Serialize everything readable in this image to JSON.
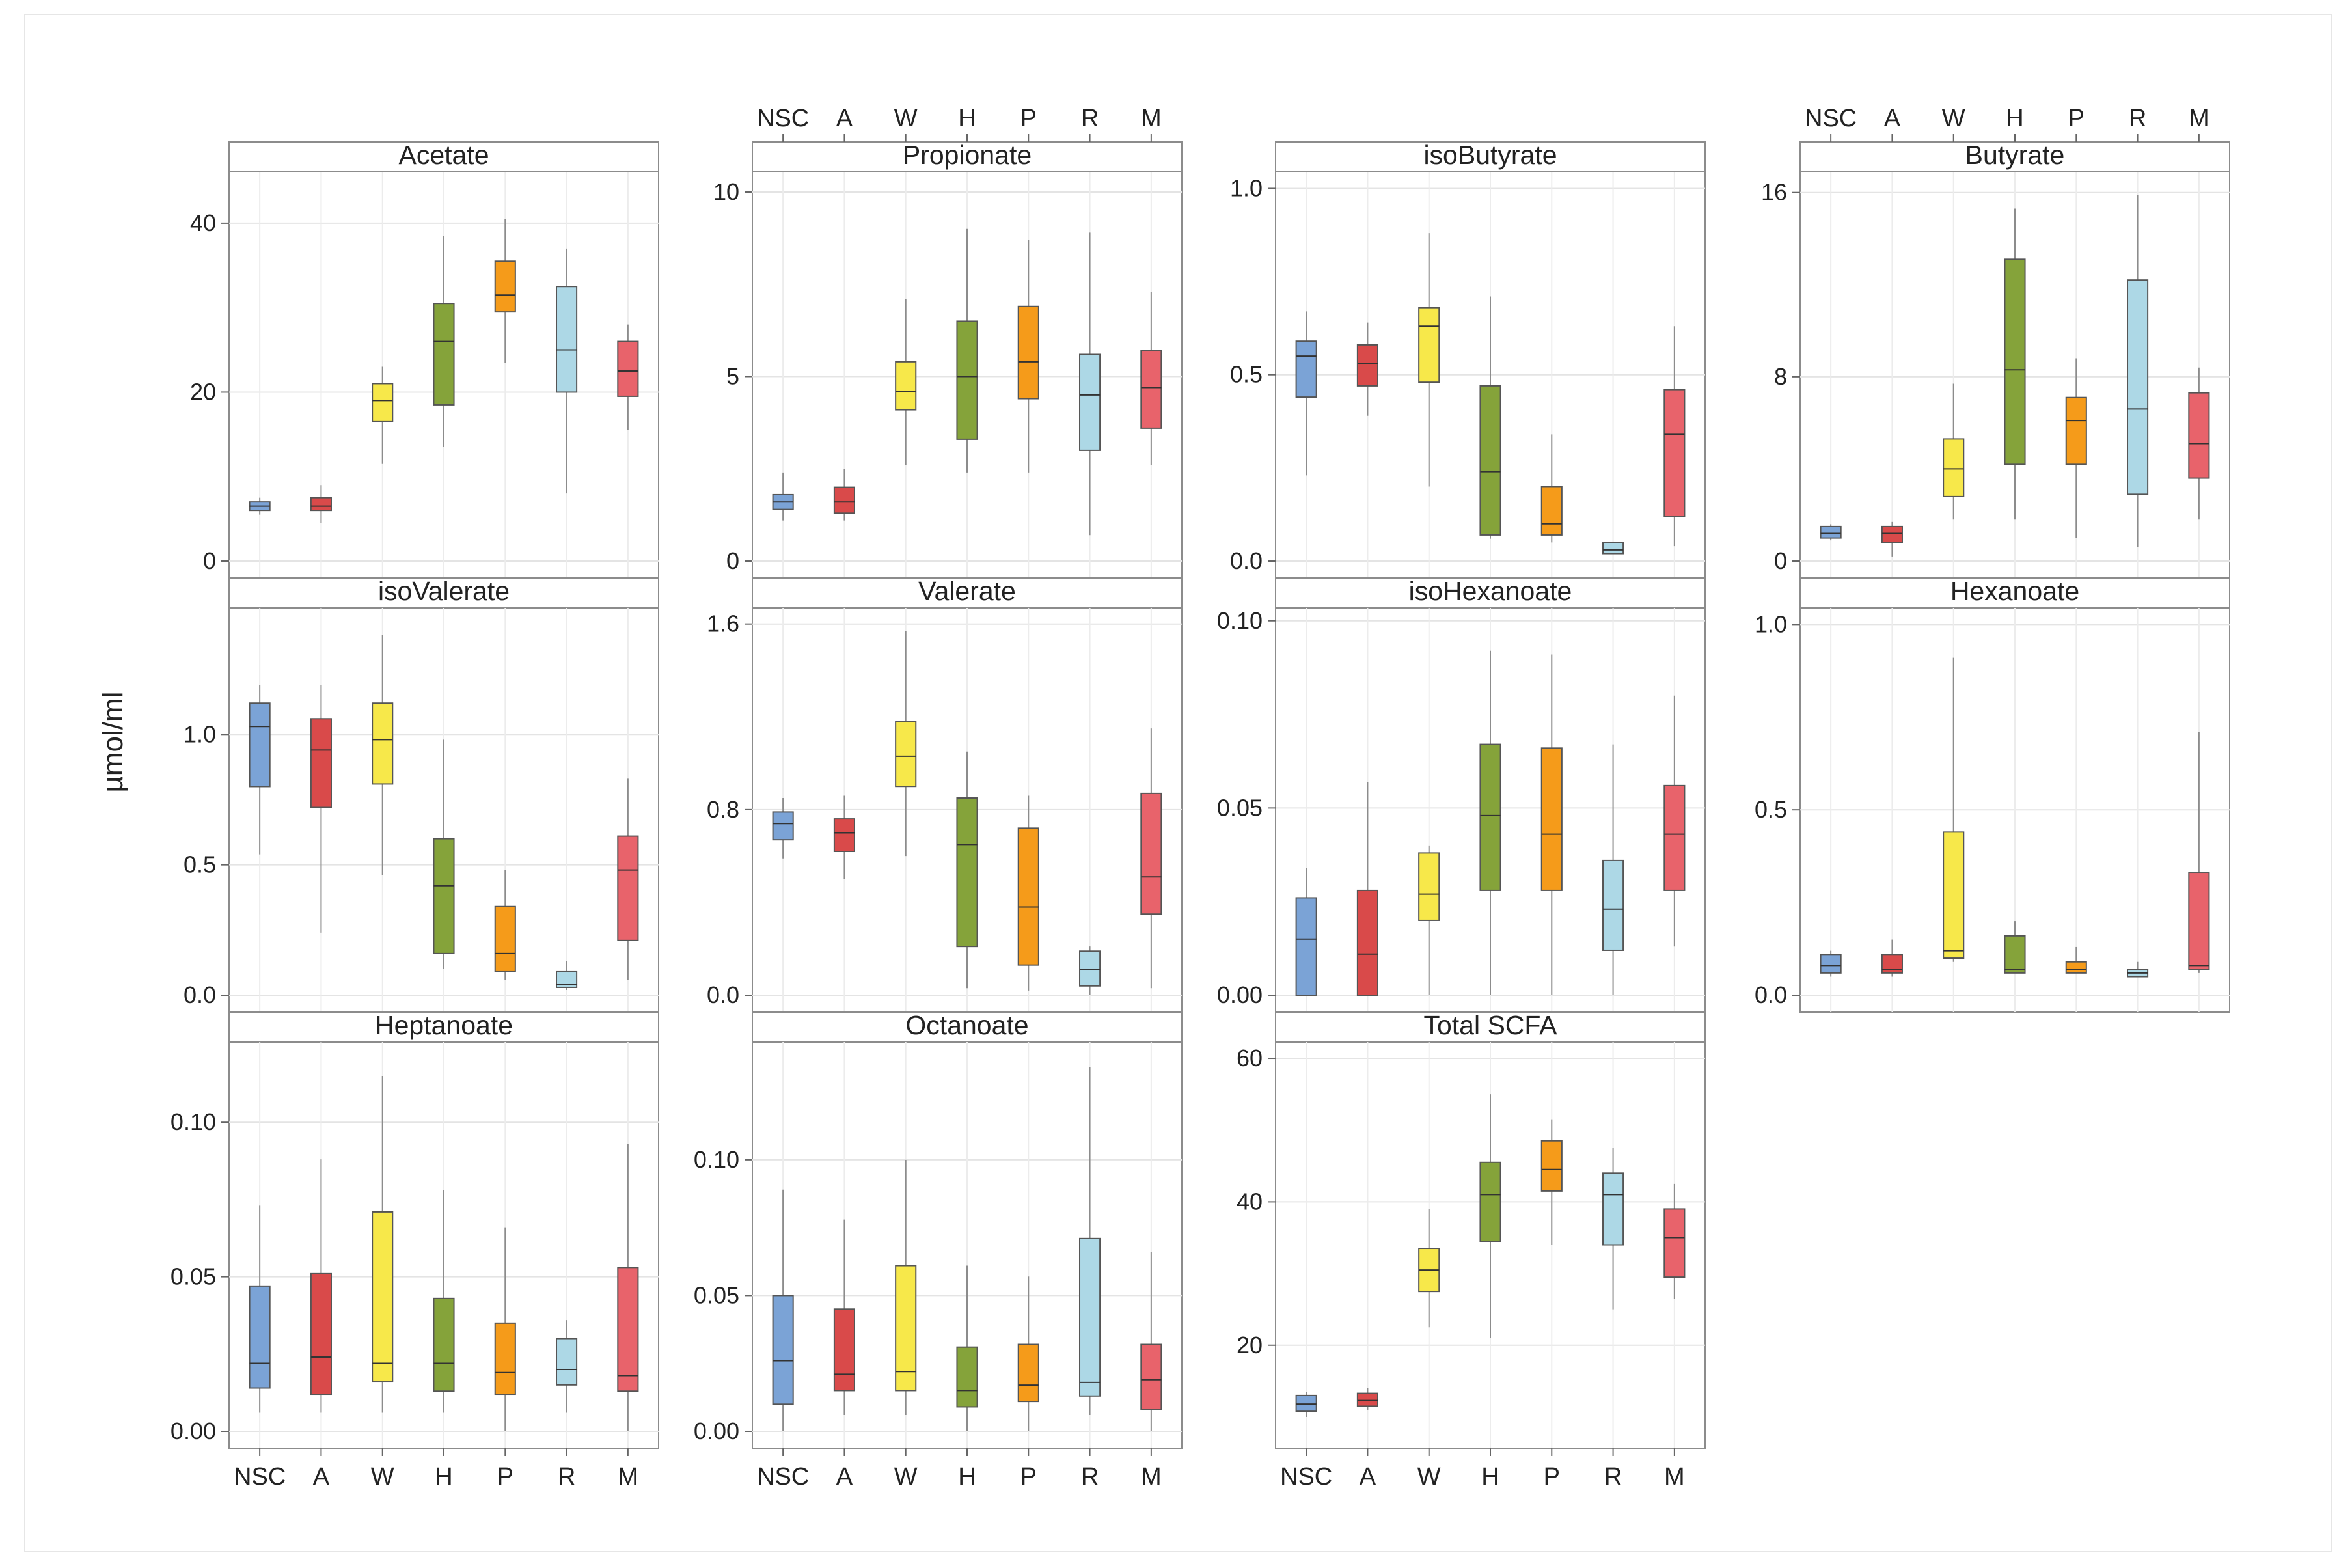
{
  "y_axis_label": "µmol/ml",
  "categories": [
    "NSC",
    "A",
    "W",
    "H",
    "P",
    "R",
    "M"
  ],
  "colors": [
    "#7ba3d6",
    "#d94a4a",
    "#f7e84a",
    "#85a33a",
    "#f59b1a",
    "#add8e6",
    "#e8636b"
  ],
  "chart_data": [
    {
      "type": "box",
      "title": "Acetate",
      "ylim": [
        0,
        45
      ],
      "yticks": [
        0,
        20,
        40
      ],
      "boxes": [
        {
          "min": 5.5,
          "q1": 6.0,
          "median": 6.5,
          "q3": 7.0,
          "max": 7.5
        },
        {
          "min": 4.5,
          "q1": 6.0,
          "median": 6.5,
          "q3": 7.5,
          "max": 9.0
        },
        {
          "min": 11.5,
          "q1": 16.5,
          "median": 19.0,
          "q3": 21.0,
          "max": 23.0
        },
        {
          "min": 13.5,
          "q1": 18.5,
          "median": 26.0,
          "q3": 30.5,
          "max": 38.5
        },
        {
          "min": 23.5,
          "q1": 29.5,
          "median": 31.5,
          "q3": 35.5,
          "max": 40.5
        },
        {
          "min": 8.0,
          "q1": 20.0,
          "median": 25.0,
          "q3": 32.5,
          "max": 37.0
        },
        {
          "min": 15.5,
          "q1": 19.5,
          "median": 22.5,
          "q3": 26.0,
          "max": 28.0
        }
      ]
    },
    {
      "type": "box",
      "title": "Propionate",
      "ylim": [
        0,
        10.3
      ],
      "yticks": [
        0,
        5,
        10
      ],
      "boxes": [
        {
          "min": 1.1,
          "q1": 1.4,
          "median": 1.6,
          "q3": 1.8,
          "max": 2.4
        },
        {
          "min": 1.1,
          "q1": 1.3,
          "median": 1.6,
          "q3": 2.0,
          "max": 2.5
        },
        {
          "min": 2.6,
          "q1": 4.1,
          "median": 4.6,
          "q3": 5.4,
          "max": 7.1
        },
        {
          "min": 2.4,
          "q1": 3.3,
          "median": 5.0,
          "q3": 6.5,
          "max": 9.0
        },
        {
          "min": 2.4,
          "q1": 4.4,
          "median": 5.4,
          "q3": 6.9,
          "max": 8.7
        },
        {
          "min": 0.7,
          "q1": 3.0,
          "median": 4.5,
          "q3": 5.6,
          "max": 8.9
        },
        {
          "min": 2.6,
          "q1": 3.6,
          "median": 4.7,
          "q3": 5.7,
          "max": 7.3
        }
      ]
    },
    {
      "type": "box",
      "title": "isoButyrate",
      "ylim": [
        0,
        1.02
      ],
      "yticks": [
        0.0,
        0.5,
        1.0
      ],
      "boxes": [
        {
          "min": 0.23,
          "q1": 0.44,
          "median": 0.55,
          "q3": 0.59,
          "max": 0.67
        },
        {
          "min": 0.39,
          "q1": 0.47,
          "median": 0.53,
          "q3": 0.58,
          "max": 0.64
        },
        {
          "min": 0.2,
          "q1": 0.48,
          "median": 0.63,
          "q3": 0.68,
          "max": 0.88
        },
        {
          "min": 0.06,
          "q1": 0.07,
          "median": 0.24,
          "q3": 0.47,
          "max": 0.71
        },
        {
          "min": 0.05,
          "q1": 0.07,
          "median": 0.1,
          "q3": 0.2,
          "max": 0.34
        },
        {
          "min": 0.02,
          "q1": 0.02,
          "median": 0.03,
          "q3": 0.05,
          "max": 0.05
        },
        {
          "min": 0.04,
          "q1": 0.12,
          "median": 0.34,
          "q3": 0.46,
          "max": 0.63
        }
      ]
    },
    {
      "type": "box",
      "title": "Butyrate",
      "ylim": [
        0,
        16.5
      ],
      "yticks": [
        0,
        8,
        16
      ],
      "boxes": [
        {
          "min": 0.9,
          "q1": 1.0,
          "median": 1.2,
          "q3": 1.5,
          "max": 1.6
        },
        {
          "min": 0.2,
          "q1": 0.8,
          "median": 1.2,
          "q3": 1.5,
          "max": 1.7
        },
        {
          "min": 1.8,
          "q1": 2.8,
          "median": 4.0,
          "q3": 5.3,
          "max": 7.7
        },
        {
          "min": 1.8,
          "q1": 4.2,
          "median": 8.3,
          "q3": 13.1,
          "max": 15.3
        },
        {
          "min": 1.0,
          "q1": 4.2,
          "median": 6.1,
          "q3": 7.1,
          "max": 8.8
        },
        {
          "min": 0.6,
          "q1": 2.9,
          "median": 6.6,
          "q3": 12.2,
          "max": 15.9
        },
        {
          "min": 1.8,
          "q1": 3.6,
          "median": 5.1,
          "q3": 7.3,
          "max": 8.4
        }
      ]
    },
    {
      "type": "box",
      "title": "isoValerate",
      "ylim": [
        0,
        1.45
      ],
      "yticks": [
        0.0,
        0.5,
        1.0
      ],
      "boxes": [
        {
          "min": 0.54,
          "q1": 0.8,
          "median": 1.03,
          "q3": 1.12,
          "max": 1.19
        },
        {
          "min": 0.24,
          "q1": 0.72,
          "median": 0.94,
          "q3": 1.06,
          "max": 1.19
        },
        {
          "min": 0.46,
          "q1": 0.81,
          "median": 0.98,
          "q3": 1.12,
          "max": 1.38
        },
        {
          "min": 0.1,
          "q1": 0.16,
          "median": 0.42,
          "q3": 0.6,
          "max": 0.98
        },
        {
          "min": 0.06,
          "q1": 0.09,
          "median": 0.16,
          "q3": 0.34,
          "max": 0.48
        },
        {
          "min": 0.02,
          "q1": 0.03,
          "median": 0.04,
          "q3": 0.09,
          "max": 0.13
        },
        {
          "min": 0.06,
          "q1": 0.21,
          "median": 0.48,
          "q3": 0.61,
          "max": 0.83
        }
      ]
    },
    {
      "type": "box",
      "title": "Valerate",
      "ylim": [
        0,
        1.63
      ],
      "yticks": [
        0.0,
        0.8,
        1.6
      ],
      "boxes": [
        {
          "min": 0.59,
          "q1": 0.67,
          "median": 0.74,
          "q3": 0.79,
          "max": 0.85
        },
        {
          "min": 0.5,
          "q1": 0.62,
          "median": 0.7,
          "q3": 0.76,
          "max": 0.86
        },
        {
          "min": 0.6,
          "q1": 0.9,
          "median": 1.03,
          "q3": 1.18,
          "max": 1.57
        },
        {
          "min": 0.03,
          "q1": 0.21,
          "median": 0.65,
          "q3": 0.85,
          "max": 1.05
        },
        {
          "min": 0.02,
          "q1": 0.13,
          "median": 0.38,
          "q3": 0.72,
          "max": 0.86
        },
        {
          "min": 0.0,
          "q1": 0.04,
          "median": 0.11,
          "q3": 0.19,
          "max": 0.21
        },
        {
          "min": 0.03,
          "q1": 0.35,
          "median": 0.51,
          "q3": 0.87,
          "max": 1.15
        }
      ]
    },
    {
      "type": "box",
      "title": "isoHexanoate",
      "ylim": [
        0,
        0.101
      ],
      "yticks": [
        0.0,
        0.05,
        0.1
      ],
      "boxes": [
        {
          "min": 0.0,
          "q1": 0.0,
          "median": 0.015,
          "q3": 0.026,
          "max": 0.034
        },
        {
          "min": 0.0,
          "q1": 0.0,
          "median": 0.011,
          "q3": 0.028,
          "max": 0.057
        },
        {
          "min": 0.0,
          "q1": 0.02,
          "median": 0.027,
          "q3": 0.038,
          "max": 0.04
        },
        {
          "min": 0.0,
          "q1": 0.028,
          "median": 0.048,
          "q3": 0.067,
          "max": 0.092
        },
        {
          "min": 0.0,
          "q1": 0.028,
          "median": 0.043,
          "q3": 0.066,
          "max": 0.091
        },
        {
          "min": 0.0,
          "q1": 0.012,
          "median": 0.023,
          "q3": 0.036,
          "max": 0.067
        },
        {
          "min": 0.013,
          "q1": 0.028,
          "median": 0.043,
          "q3": 0.056,
          "max": 0.08
        }
      ]
    },
    {
      "type": "box",
      "title": "Hexanoate",
      "ylim": [
        0,
        1.02
      ],
      "yticks": [
        0.0,
        0.5,
        1.0
      ],
      "boxes": [
        {
          "min": 0.05,
          "q1": 0.06,
          "median": 0.08,
          "q3": 0.11,
          "max": 0.12
        },
        {
          "min": 0.05,
          "q1": 0.06,
          "median": 0.07,
          "q3": 0.11,
          "max": 0.15
        },
        {
          "min": 0.09,
          "q1": 0.1,
          "median": 0.12,
          "q3": 0.44,
          "max": 0.91
        },
        {
          "min": 0.06,
          "q1": 0.06,
          "median": 0.07,
          "q3": 0.16,
          "max": 0.2
        },
        {
          "min": 0.06,
          "q1": 0.06,
          "median": 0.07,
          "q3": 0.09,
          "max": 0.13
        },
        {
          "min": 0.05,
          "q1": 0.05,
          "median": 0.06,
          "q3": 0.07,
          "max": 0.09
        },
        {
          "min": 0.06,
          "q1": 0.07,
          "median": 0.08,
          "q3": 0.33,
          "max": 0.71
        }
      ]
    },
    {
      "type": "box",
      "title": "Heptanoate",
      "ylim": [
        0,
        0.123
      ],
      "yticks": [
        0.0,
        0.05,
        0.1
      ],
      "boxes": [
        {
          "min": 0.006,
          "q1": 0.014,
          "median": 0.022,
          "q3": 0.047,
          "max": 0.073
        },
        {
          "min": 0.006,
          "q1": 0.012,
          "median": 0.024,
          "q3": 0.051,
          "max": 0.088
        },
        {
          "min": 0.006,
          "q1": 0.016,
          "median": 0.022,
          "q3": 0.071,
          "max": 0.115
        },
        {
          "min": 0.006,
          "q1": 0.013,
          "median": 0.022,
          "q3": 0.043,
          "max": 0.078
        },
        {
          "min": 0.0,
          "q1": 0.012,
          "median": 0.019,
          "q3": 0.035,
          "max": 0.066
        },
        {
          "min": 0.006,
          "q1": 0.015,
          "median": 0.02,
          "q3": 0.03,
          "max": 0.036
        },
        {
          "min": 0.0,
          "q1": 0.013,
          "median": 0.018,
          "q3": 0.053,
          "max": 0.093
        }
      ]
    },
    {
      "type": "box",
      "title": "Octanoate",
      "ylim": [
        0,
        0.14
      ],
      "yticks": [
        0.0,
        0.05,
        0.1
      ],
      "boxes": [
        {
          "min": 0.0,
          "q1": 0.01,
          "median": 0.026,
          "q3": 0.05,
          "max": 0.089
        },
        {
          "min": 0.006,
          "q1": 0.015,
          "median": 0.021,
          "q3": 0.045,
          "max": 0.078
        },
        {
          "min": 0.006,
          "q1": 0.015,
          "median": 0.022,
          "q3": 0.061,
          "max": 0.1
        },
        {
          "min": 0.0,
          "q1": 0.009,
          "median": 0.015,
          "q3": 0.031,
          "max": 0.061
        },
        {
          "min": 0.0,
          "q1": 0.011,
          "median": 0.017,
          "q3": 0.032,
          "max": 0.057
        },
        {
          "min": 0.006,
          "q1": 0.013,
          "median": 0.018,
          "q3": 0.071,
          "max": 0.134
        },
        {
          "min": 0.0,
          "q1": 0.008,
          "median": 0.019,
          "q3": 0.032,
          "max": 0.066
        }
      ]
    },
    {
      "type": "box",
      "title": "Total SCFA",
      "ylim": [
        8,
        61
      ],
      "yticks": [
        20,
        40,
        60
      ],
      "boxes": [
        {
          "min": 10.0,
          "q1": 10.8,
          "median": 11.8,
          "q3": 13.0,
          "max": 13.5
        },
        {
          "min": 11.0,
          "q1": 11.5,
          "median": 12.3,
          "q3": 13.3,
          "max": 14.0
        },
        {
          "min": 22.5,
          "q1": 27.5,
          "median": 30.5,
          "q3": 33.5,
          "max": 39.0
        },
        {
          "min": 21.0,
          "q1": 34.5,
          "median": 41.0,
          "q3": 45.5,
          "max": 55.0
        },
        {
          "min": 34.0,
          "q1": 41.5,
          "median": 44.5,
          "q3": 48.5,
          "max": 51.5
        },
        {
          "min": 25.0,
          "q1": 34.0,
          "median": 41.0,
          "q3": 44.0,
          "max": 47.5
        },
        {
          "min": 26.5,
          "q1": 29.5,
          "median": 35.0,
          "q3": 39.0,
          "max": 42.5
        }
      ]
    }
  ]
}
